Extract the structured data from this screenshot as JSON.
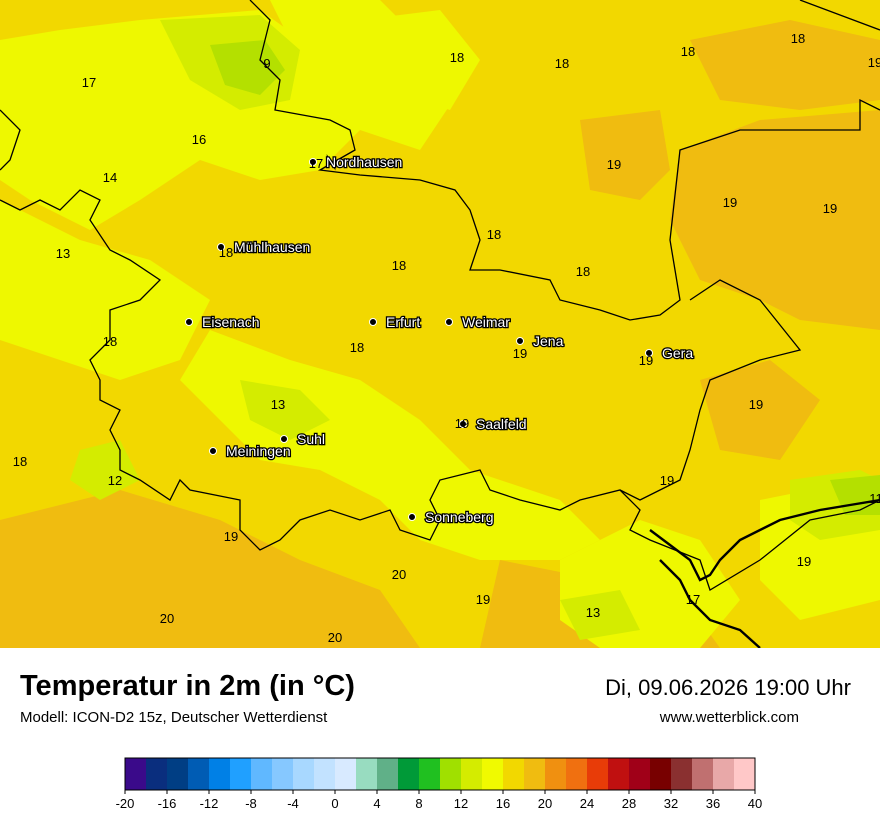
{
  "title": "Temperatur in 2m (in °C)",
  "model": "Modell: ICON-D2 15z, Deutscher Wetterdienst",
  "datetime": "Di, 09.06.2026 19:00 Uhr",
  "website": "www.wetterblick.com",
  "colors": {
    "t12": "#b4e000",
    "t14": "#d4ec00",
    "t16": "#eef800",
    "t18": "#f2d800",
    "t20": "#f0bc10",
    "border": "#000000",
    "city_dot": "#000000",
    "city_label": "#ffffff"
  },
  "cities": [
    {
      "name": "Nordhausen"
    },
    {
      "name": "Mühlhausen"
    },
    {
      "name": "Eisenach"
    },
    {
      "name": "Erfurt"
    },
    {
      "name": "Weimar"
    },
    {
      "name": "Jena"
    },
    {
      "name": "Gera"
    },
    {
      "name": "Suhl"
    },
    {
      "name": "Meiningen"
    },
    {
      "name": "Saalfeld"
    },
    {
      "name": "Sonneberg"
    }
  ],
  "values": [
    "18",
    "18",
    "18",
    "18",
    "19",
    "17",
    "9",
    "16",
    "14",
    "13",
    "17",
    "19",
    "19",
    "19",
    "18",
    "18",
    "18",
    "18",
    "18",
    "18",
    "19",
    "19",
    "13",
    "19",
    "12",
    "18",
    "19",
    "11",
    "19",
    "19",
    "20",
    "20",
    "19",
    "13",
    "17",
    "19",
    "20"
  ],
  "legend": {
    "ticks": [
      "-20",
      "-16",
      "-12",
      "-8",
      "-4",
      "0",
      "4",
      "8",
      "12",
      "16",
      "20",
      "24",
      "28",
      "32",
      "36",
      "40"
    ],
    "colors": [
      "#3a0a8a",
      "#0a2e7e",
      "#003e84",
      "#005cb4",
      "#0080e6",
      "#20a0ff",
      "#60b8ff",
      "#86c8ff",
      "#a8d8ff",
      "#c2e2ff",
      "#d8eaff",
      "#98dcc0",
      "#60b088",
      "#009a38",
      "#20c020",
      "#a0e000",
      "#d4ec00",
      "#f0fa00",
      "#f2d800",
      "#f0bc10",
      "#f09010",
      "#f07010",
      "#e83c08",
      "#c01010",
      "#a00018",
      "#780000",
      "#8a3030",
      "#c07070",
      "#e8a8a8",
      "#ffc8c8"
    ],
    "range": [
      -20,
      40
    ]
  }
}
